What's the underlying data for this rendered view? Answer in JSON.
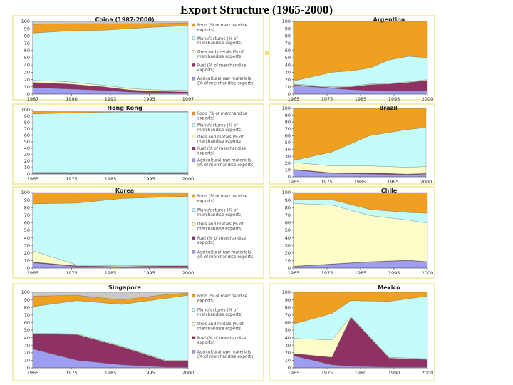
{
  "page": {
    "title": "Export Structure (1965-2000)"
  },
  "colors": {
    "agricultural": "#9d9df2",
    "fuel": "#8e3266",
    "ores": "#fcfcc8",
    "manufactures": "#c4fcfc",
    "food": "#f0a020",
    "other": "#c9c9c9"
  },
  "legend_labels": [
    [
      "Food (% of merchandise",
      "exports)"
    ],
    [
      "Manufactures (% of",
      "merchandise exports)"
    ],
    [
      "Ores and metals (% of",
      "merchandise exports)"
    ],
    [
      "Fuel (% of merchandise",
      "exports)"
    ],
    [
      "Agricultural raw materials",
      "(% of merchandise exports)"
    ]
  ],
  "chart_data": [
    {
      "type": "area",
      "stacked": true,
      "title": "China (1987-2000)",
      "x": [
        1987,
        1990,
        1993,
        1995,
        1997,
        2000
      ],
      "xticks": [
        "1987",
        "1990",
        "1993",
        "1995",
        "1997"
      ],
      "ylim": [
        0,
        100
      ],
      "yticks": [
        0,
        10,
        20,
        30,
        40,
        50,
        60,
        70,
        80,
        90,
        100
      ],
      "legend": "right",
      "series": [
        {
          "name": "Agricultural raw materials",
          "color_key": "agricultural",
          "values": [
            9,
            7,
            5,
            3,
            2,
            1.5
          ]
        },
        {
          "name": "Fuel",
          "color_key": "fuel",
          "values": [
            7,
            7,
            5,
            3,
            2,
            1.5
          ]
        },
        {
          "name": "Ores and metals",
          "color_key": "ores",
          "values": [
            3,
            3,
            2,
            2,
            2,
            2
          ]
        },
        {
          "name": "Manufactures",
          "color_key": "manufactures",
          "values": [
            65,
            70,
            76,
            82,
            86,
            89
          ]
        },
        {
          "name": "Food",
          "color_key": "food",
          "values": [
            12,
            10,
            9,
            7,
            5,
            4
          ]
        },
        {
          "name": "",
          "color_key": "other",
          "values": [
            4,
            3,
            3,
            3,
            3,
            2
          ]
        }
      ]
    },
    {
      "type": "area",
      "stacked": true,
      "title": "Argentina",
      "x": [
        1965,
        1975,
        1980,
        1985,
        1990,
        1995,
        2000
      ],
      "xticks": [
        "1965",
        "1975",
        "1985",
        "1995",
        "2000"
      ],
      "ylim": [
        0,
        100
      ],
      "yticks": [
        0,
        10,
        20,
        30,
        40,
        50,
        60,
        70,
        80,
        90,
        100
      ],
      "series": [
        {
          "name": "Agricultural raw materials",
          "color_key": "agricultural",
          "values": [
            12,
            8,
            6,
            5,
            4,
            4,
            4
          ]
        },
        {
          "name": "Fuel",
          "color_key": "fuel",
          "values": [
            1,
            1,
            4,
            8,
            10,
            12,
            15
          ]
        },
        {
          "name": "Ores and metals",
          "color_key": "ores",
          "values": [
            1,
            1,
            1,
            1,
            1,
            1,
            1
          ]
        },
        {
          "name": "Manufactures",
          "color_key": "manufactures",
          "values": [
            4,
            20,
            21,
            22,
            32,
            35,
            30
          ]
        },
        {
          "name": "Food",
          "color_key": "food",
          "values": [
            82,
            70,
            68,
            64,
            53,
            48,
            50
          ]
        }
      ]
    },
    {
      "type": "area",
      "stacked": true,
      "title": "Hong Kong",
      "x": [
        1965,
        1975,
        1985,
        1995,
        2000
      ],
      "xticks": [
        "1965",
        "1975",
        "1985",
        "1995",
        "2000"
      ],
      "ylim": [
        0,
        100
      ],
      "yticks": [
        0,
        10,
        20,
        30,
        40,
        50,
        60,
        70,
        80,
        90,
        100
      ],
      "legend": "right",
      "series": [
        {
          "name": "Agricultural raw materials",
          "color_key": "agricultural",
          "values": [
            1,
            1,
            1,
            1,
            1
          ]
        },
        {
          "name": "Fuel",
          "color_key": "fuel",
          "values": [
            0.5,
            0.5,
            0.5,
            0.5,
            0.5
          ]
        },
        {
          "name": "Ores and metals",
          "color_key": "ores",
          "values": [
            1,
            1,
            1,
            1,
            1
          ]
        },
        {
          "name": "Manufactures",
          "color_key": "manufactures",
          "values": [
            91,
            93,
            94,
            94,
            94
          ]
        },
        {
          "name": "Food",
          "color_key": "food",
          "values": [
            4,
            3,
            2,
            2,
            2
          ]
        }
      ]
    },
    {
      "type": "area",
      "stacked": true,
      "title": "Brazil",
      "x": [
        1965,
        1975,
        1985,
        1995,
        2000
      ],
      "xticks": [
        "1965",
        "1975",
        "1985",
        "1995",
        "2000"
      ],
      "ylim": [
        0,
        100
      ],
      "yticks": [
        0,
        10,
        20,
        30,
        40,
        50,
        60,
        70,
        80,
        90,
        100
      ],
      "series": [
        {
          "name": "Agricultural raw materials",
          "color_key": "agricultural",
          "values": [
            10,
            5,
            4,
            3,
            4
          ]
        },
        {
          "name": "Fuel",
          "color_key": "fuel",
          "values": [
            1,
            1,
            2,
            1,
            1
          ]
        },
        {
          "name": "Ores and metals",
          "color_key": "ores",
          "values": [
            10,
            10,
            10,
            10,
            10
          ]
        },
        {
          "name": "Manufactures",
          "color_key": "manufactures",
          "values": [
            3,
            20,
            44,
            55,
            57
          ]
        },
        {
          "name": "Food",
          "color_key": "food",
          "values": [
            76,
            64,
            40,
            31,
            28
          ]
        }
      ]
    },
    {
      "type": "area",
      "stacked": true,
      "title": "Korea",
      "x": [
        1965,
        1975,
        1985,
        1995,
        2000
      ],
      "xticks": [
        "1965",
        "1975",
        "1985",
        "1995",
        "2000"
      ],
      "ylim": [
        0,
        100
      ],
      "yticks": [
        0,
        10,
        20,
        30,
        40,
        50,
        60,
        70,
        80,
        90,
        100
      ],
      "legend": "right",
      "series": [
        {
          "name": "Agricultural raw materials",
          "color_key": "agricultural",
          "values": [
            7,
            2,
            1,
            1,
            1
          ]
        },
        {
          "name": "Fuel",
          "color_key": "fuel",
          "values": [
            1,
            1,
            1,
            2,
            2
          ]
        },
        {
          "name": "Ores and metals",
          "color_key": "ores",
          "values": [
            15,
            1,
            1,
            1,
            1
          ]
        },
        {
          "name": "Manufactures",
          "color_key": "manufactures",
          "values": [
            62,
            82,
            89,
            90,
            91
          ]
        },
        {
          "name": "Food",
          "color_key": "food",
          "values": [
            15,
            14,
            8,
            6,
            5
          ]
        }
      ]
    },
    {
      "type": "area",
      "stacked": true,
      "title": "Chile",
      "x": [
        1965,
        1975,
        1985,
        1995,
        2000
      ],
      "xticks": [
        "1965",
        "1975",
        "1985",
        "1995",
        "2000"
      ],
      "ylim": [
        0,
        100
      ],
      "yticks": [
        0,
        10,
        20,
        30,
        40,
        50,
        60,
        70,
        80,
        90,
        100
      ],
      "series": [
        {
          "name": "Agricultural raw materials",
          "color_key": "agricultural",
          "values": [
            2,
            5,
            8,
            10,
            8
          ]
        },
        {
          "name": "Fuel",
          "color_key": "fuel",
          "values": [
            0.5,
            0.5,
            0.5,
            0.5,
            0.5
          ]
        },
        {
          "name": "Ores and metals",
          "color_key": "ores",
          "values": [
            83,
            78,
            61,
            53,
            51
          ]
        },
        {
          "name": "Manufactures",
          "color_key": "manufactures",
          "values": [
            5,
            7,
            8,
            10,
            13
          ]
        },
        {
          "name": "Food",
          "color_key": "food",
          "values": [
            9.5,
            9.5,
            22.5,
            26.5,
            27.5
          ]
        }
      ]
    },
    {
      "type": "area",
      "stacked": true,
      "title": "Singapore",
      "x": [
        1965,
        1975,
        1985,
        1995,
        2000
      ],
      "xticks": [
        "1965",
        "1975",
        "1985",
        "1995",
        "2000"
      ],
      "ylim": [
        0,
        100
      ],
      "yticks": [
        0,
        10,
        20,
        30,
        40,
        50,
        60,
        70,
        80,
        90,
        100
      ],
      "legend": "right",
      "series": [
        {
          "name": "Agricultural raw materials",
          "color_key": "agricultural",
          "values": [
            25,
            10,
            4,
            1,
            1
          ]
        },
        {
          "name": "Fuel",
          "color_key": "fuel",
          "values": [
            20,
            34,
            24,
            8,
            8
          ]
        },
        {
          "name": "Ores and metals",
          "color_key": "ores",
          "values": [
            1,
            1,
            1,
            1,
            1
          ]
        },
        {
          "name": "Manufactures",
          "color_key": "manufactures",
          "values": [
            35,
            44,
            55,
            82,
            86
          ]
        },
        {
          "name": "Food",
          "color_key": "food",
          "values": [
            14,
            7,
            6,
            5,
            3
          ]
        },
        {
          "name": "",
          "color_key": "other",
          "values": [
            5,
            4,
            10,
            3,
            1
          ]
        }
      ]
    },
    {
      "type": "area",
      "stacked": true,
      "title": "Mexico",
      "x": [
        1965,
        1975,
        1980,
        1990,
        2000
      ],
      "xticks": [
        "1965",
        "1975",
        "1980",
        "1990",
        "2000"
      ],
      "ylim": [
        0,
        100
      ],
      "yticks": [
        0,
        10,
        20,
        30,
        40,
        50,
        60,
        70,
        80,
        90,
        100
      ],
      "series": [
        {
          "name": "Agricultural raw materials",
          "color_key": "agricultural",
          "values": [
            16,
            4,
            2,
            1,
            1
          ]
        },
        {
          "name": "Fuel",
          "color_key": "fuel",
          "values": [
            3,
            10,
            65,
            12,
            10
          ]
        },
        {
          "name": "Ores and metals",
          "color_key": "ores",
          "values": [
            20,
            23,
            1,
            1,
            1
          ]
        },
        {
          "name": "Manufactures",
          "color_key": "manufactures",
          "values": [
            19,
            35,
            21,
            74,
            83
          ]
        },
        {
          "name": "Food",
          "color_key": "food",
          "values": [
            42,
            28,
            11,
            12,
            5
          ]
        }
      ]
    }
  ]
}
